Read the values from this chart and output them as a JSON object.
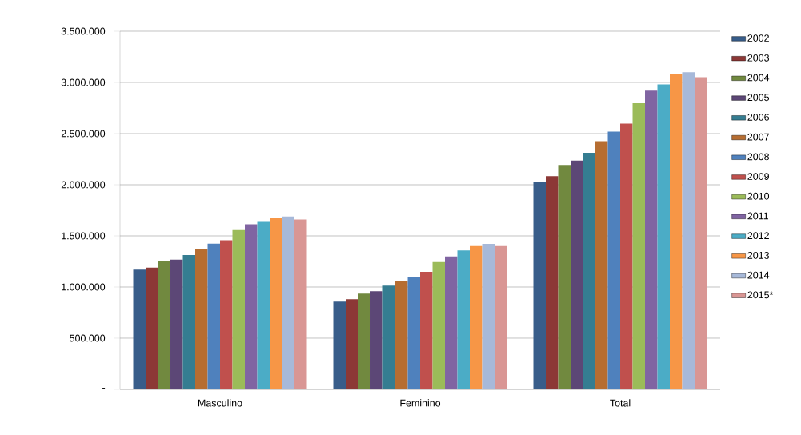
{
  "chart_data": {
    "type": "bar",
    "categories": [
      "Masculino",
      "Feminino",
      "Total"
    ],
    "series": [
      {
        "name": "2002",
        "color": "#385d8a",
        "values": [
          1170000,
          857000,
          2027000
        ]
      },
      {
        "name": "2003",
        "color": "#8c3836",
        "values": [
          1190000,
          880000,
          2083000
        ]
      },
      {
        "name": "2004",
        "color": "#71893f",
        "values": [
          1255000,
          935000,
          2194000
        ]
      },
      {
        "name": "2005",
        "color": "#5c4776",
        "values": [
          1268000,
          959000,
          2237000
        ]
      },
      {
        "name": "2006",
        "color": "#357d91",
        "values": [
          1313000,
          1013000,
          2312000
        ]
      },
      {
        "name": "2007",
        "color": "#b66d31",
        "values": [
          1368000,
          1060000,
          2425000
        ]
      },
      {
        "name": "2008",
        "color": "#4f81bd",
        "values": [
          1423000,
          1102000,
          2520000
        ]
      },
      {
        "name": "2009",
        "color": "#c0504d",
        "values": [
          1457000,
          1148000,
          2597000
        ]
      },
      {
        "name": "2010",
        "color": "#9bbb59",
        "values": [
          1557000,
          1245000,
          2796000
        ]
      },
      {
        "name": "2011",
        "color": "#8064a2",
        "values": [
          1614000,
          1299000,
          2919000
        ]
      },
      {
        "name": "2012",
        "color": "#4bacc6",
        "values": [
          1636000,
          1357000,
          2981000
        ]
      },
      {
        "name": "2013",
        "color": "#f79646",
        "values": [
          1680000,
          1401000,
          3080000
        ]
      },
      {
        "name": "2014",
        "color": "#a7b9d9",
        "values": [
          1690000,
          1422000,
          3100000
        ]
      },
      {
        "name": "2015*",
        "color": "#d99694",
        "values": [
          1660000,
          1401000,
          3051000
        ]
      }
    ],
    "ylim": [
      0,
      3500000
    ],
    "yticks": [
      {
        "value": 0,
        "label": "-"
      },
      {
        "value": 500000,
        "label": "500.000"
      },
      {
        "value": 1000000,
        "label": "1.000.000"
      },
      {
        "value": 1500000,
        "label": "1.500.000"
      },
      {
        "value": 2000000,
        "label": "2.000.000"
      },
      {
        "value": 2500000,
        "label": "2.500.000"
      },
      {
        "value": 3000000,
        "label": "3.000.000"
      },
      {
        "value": 3500000,
        "label": "3.500.000"
      }
    ],
    "grid": "y",
    "legend": "right"
  }
}
